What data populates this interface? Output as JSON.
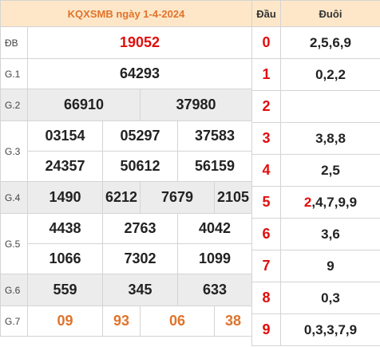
{
  "title": "KQXSMB ngày 1-4-2024",
  "results": {
    "db": {
      "label": "ĐB",
      "values": [
        "19052"
      ]
    },
    "g1": {
      "label": "G.1",
      "values": [
        "64293"
      ]
    },
    "g2": {
      "label": "G.2",
      "values": [
        "66910",
        "37980"
      ]
    },
    "g3": {
      "label": "G.3",
      "values": [
        "03154",
        "05297",
        "37583",
        "24357",
        "50612",
        "56159"
      ]
    },
    "g4": {
      "label": "G.4",
      "values": [
        "1490",
        "6212",
        "7679",
        "2105"
      ]
    },
    "g5": {
      "label": "G.5",
      "values": [
        "4438",
        "2763",
        "4042",
        "1066",
        "7302",
        "1099"
      ]
    },
    "g6": {
      "label": "G.6",
      "values": [
        "559",
        "345",
        "633"
      ]
    },
    "g7": {
      "label": "G.7",
      "values": [
        "09",
        "93",
        "06",
        "38"
      ]
    }
  },
  "loto": {
    "header_dau": "Đầu",
    "header_duoi": "Đuôi",
    "rows": [
      {
        "dau": "0",
        "duoi": "2,5,6,9"
      },
      {
        "dau": "1",
        "duoi": "0,2,2"
      },
      {
        "dau": "2",
        "duoi": ""
      },
      {
        "dau": "3",
        "duoi": "3,8,8"
      },
      {
        "dau": "4",
        "duoi": "2,5"
      },
      {
        "dau": "5",
        "duoi_highlight": "2",
        "duoi_rest": ",4,7,9,9"
      },
      {
        "dau": "6",
        "duoi": "3,6"
      },
      {
        "dau": "7",
        "duoi": "9"
      },
      {
        "dau": "8",
        "duoi": "0,3"
      },
      {
        "dau": "9",
        "duoi": "0,3,3,7,9"
      }
    ]
  },
  "colors": {
    "header_bg": "#fde7c8",
    "accent_orange": "#e1732a",
    "red": "#e10d0d",
    "shade": "#ececec",
    "border": "#d4d4d4"
  }
}
